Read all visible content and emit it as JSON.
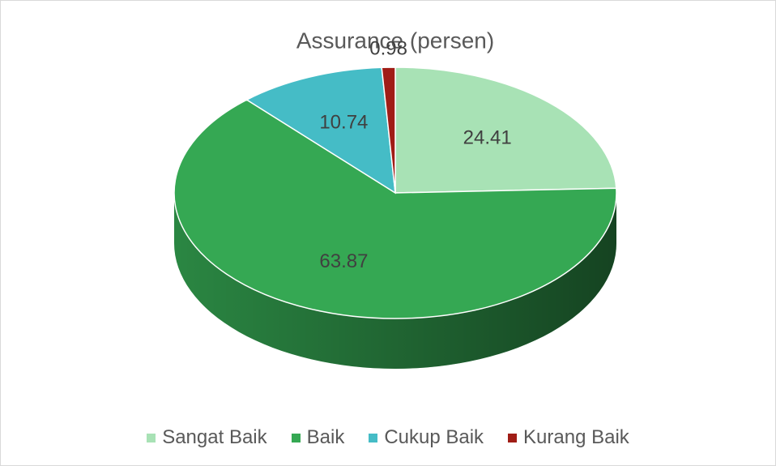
{
  "chart_data": {
    "type": "pie",
    "title": "Assurance (persen)",
    "categories": [
      "Sangat Baik",
      "Baik",
      "Cukup Baik",
      "Kurang Baik"
    ],
    "values": [
      24.41,
      63.87,
      10.74,
      0.98
    ],
    "colors": [
      "#a8e2b5",
      "#35a853",
      "#45bcc6",
      "#a01d16"
    ],
    "legend": "bottom"
  }
}
